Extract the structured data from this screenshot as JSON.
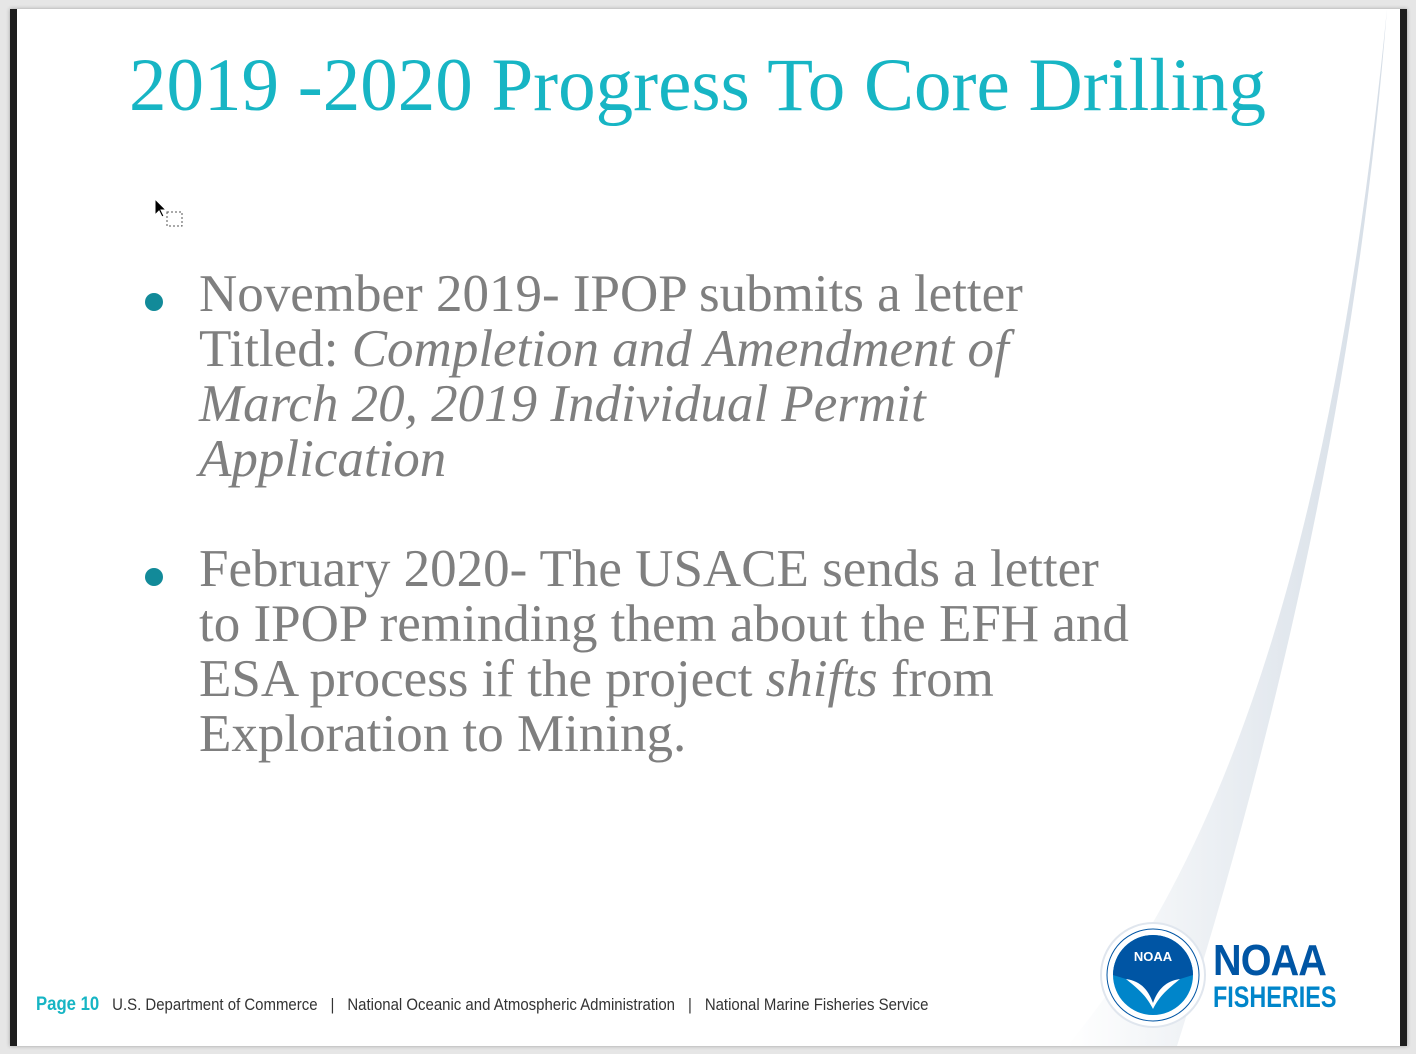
{
  "title": "2019 -2020 Progress To Core Drilling",
  "bullets": [
    {
      "plain": "November 2019- IPOP submits a letter Titled: ",
      "italic": "Completion and Amendment of March 20, 2019 Individual Permit Application"
    },
    {
      "plain": "February 2020- The USACE sends a letter to IPOP reminding them about the EFH and ESA process if the project ",
      "italic": "shifts",
      "tail": " from Exploration to Mining."
    }
  ],
  "footer": {
    "page": "Page 10",
    "dept": "U.S. Department of Commerce",
    "sep": "|",
    "noaa": "National Oceanic and Atmospheric Administration",
    "nmfs": "National Marine Fisheries Service"
  },
  "logo": {
    "line1": "NOAA",
    "line2": "FISHERIES",
    "seal_text": "NOAA"
  },
  "colors": {
    "title": "#17b5c4",
    "bullet": "#128a99",
    "body": "#7f7f7f",
    "brand": "#0055a4"
  }
}
